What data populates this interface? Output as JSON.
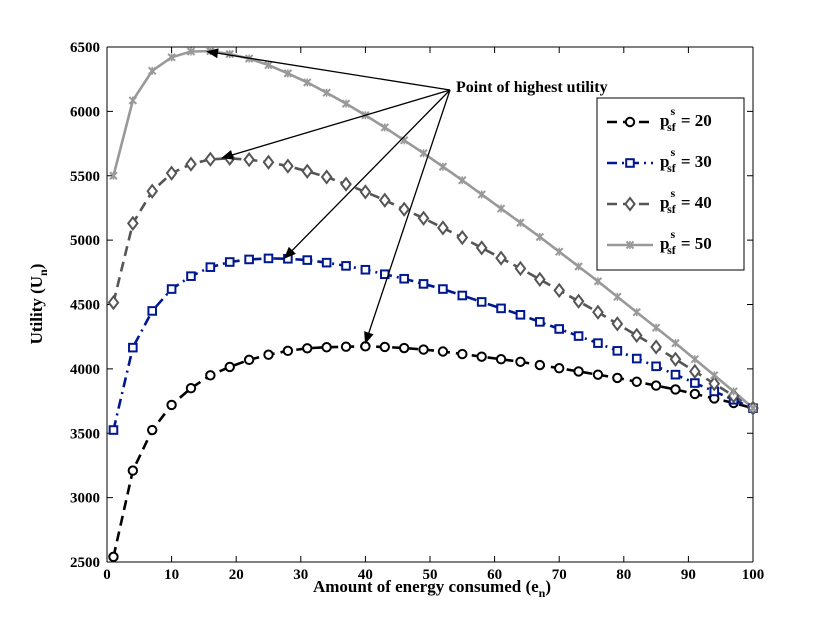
{
  "chart_data": {
    "type": "line",
    "title": "",
    "xlabel": "Amount of energy consumed (e",
    "xlabel_subscript": "n",
    "xlabel_suffix": ")",
    "ylabel": "Utility (U",
    "ylabel_subscript": "n",
    "ylabel_suffix": ")",
    "xlim": [
      0,
      100
    ],
    "ylim": [
      2500,
      6500
    ],
    "xticks": [
      0,
      10,
      20,
      30,
      40,
      50,
      60,
      70,
      80,
      90,
      100
    ],
    "yticks": [
      2500,
      3000,
      3500,
      4000,
      4500,
      5000,
      5500,
      6000,
      6500
    ],
    "grid": false,
    "x": [
      1,
      4,
      7,
      10,
      13,
      16,
      19,
      22,
      25,
      28,
      31,
      34,
      37,
      40,
      43,
      46,
      49,
      52,
      55,
      58,
      61,
      64,
      67,
      70,
      73,
      76,
      79,
      82,
      85,
      88,
      91,
      94,
      97,
      100
    ],
    "series": [
      {
        "name": "p_sf^s = 20",
        "label_main": "p",
        "label_sub": "sf",
        "label_sup": "s",
        "label_value": "= 20",
        "color": "#000000",
        "line_style": "dashed",
        "marker": "circle",
        "values": [
          2540,
          3210,
          3525,
          3720,
          3850,
          3950,
          4015,
          4070,
          4110,
          4140,
          4160,
          4168,
          4172,
          4175,
          4170,
          4162,
          4150,
          4135,
          4115,
          4095,
          4075,
          4055,
          4030,
          4005,
          3980,
          3955,
          3930,
          3900,
          3870,
          3840,
          3805,
          3770,
          3735,
          3695
        ]
      },
      {
        "name": "p_sf^s = 30",
        "label_main": "p",
        "label_sub": "sf",
        "label_sup": "s",
        "label_value": "= 30",
        "color": "#00188f",
        "line_style": "dash-dot",
        "marker": "square",
        "values": [
          3525,
          4165,
          4450,
          4620,
          4720,
          4790,
          4830,
          4850,
          4858,
          4855,
          4845,
          4825,
          4800,
          4770,
          4735,
          4700,
          4660,
          4620,
          4570,
          4520,
          4470,
          4420,
          4365,
          4310,
          4255,
          4200,
          4140,
          4080,
          4020,
          3955,
          3890,
          3825,
          3760,
          3695
        ]
      },
      {
        "name": "p_sf^s = 40",
        "label_main": "p",
        "label_sub": "sf",
        "label_sup": "s",
        "label_value": "= 40",
        "color": "#555555",
        "line_style": "dashed",
        "marker": "diamond",
        "values": [
          4515,
          5130,
          5380,
          5520,
          5590,
          5628,
          5635,
          5625,
          5605,
          5575,
          5535,
          5490,
          5435,
          5375,
          5310,
          5240,
          5170,
          5095,
          5020,
          4940,
          4860,
          4780,
          4695,
          4610,
          4525,
          4440,
          4350,
          4260,
          4170,
          4075,
          3980,
          3885,
          3790,
          3695
        ]
      },
      {
        "name": "p_sf^s = 50",
        "label_main": "p",
        "label_sub": "sf",
        "label_sup": "s",
        "label_value": "= 50",
        "color": "#999999",
        "line_style": "solid",
        "marker": "cross",
        "values": [
          5500,
          6085,
          6315,
          6420,
          6465,
          6468,
          6445,
          6410,
          6360,
          6295,
          6225,
          6145,
          6060,
          5970,
          5875,
          5775,
          5675,
          5570,
          5465,
          5355,
          5245,
          5135,
          5025,
          4910,
          4795,
          4680,
          4560,
          4440,
          4320,
          4200,
          4075,
          3950,
          3825,
          3695
        ]
      }
    ],
    "annotations": [
      {
        "text": "Point of highest utility",
        "arrow_targets": [
          {
            "x": 15.5,
            "y": 6465
          },
          {
            "x": 17.8,
            "y": 5638
          },
          {
            "x": 27.5,
            "y": 4860
          },
          {
            "x": 40,
            "y": 4200
          }
        ]
      }
    ],
    "legend_position": "top-right"
  }
}
